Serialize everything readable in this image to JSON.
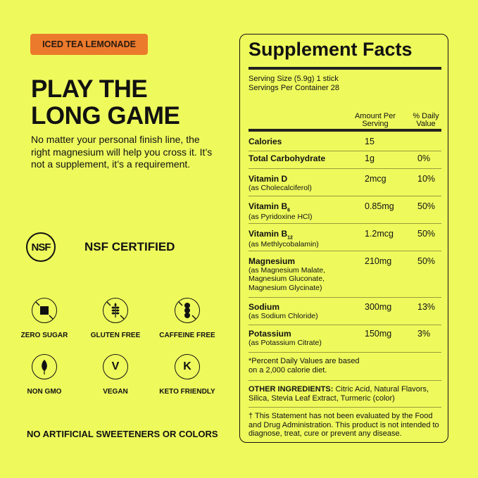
{
  "flavor_badge": "ICED TEA LEMONADE",
  "headline": [
    "PLAY THE",
    "LONG GAME"
  ],
  "description": "No matter your personal finish line, the right magnesium will help you cross it. It’s not a supplement, it’s a requirement.",
  "certification": {
    "logo_text": "NSF",
    "label": "NSF CERTIFIED"
  },
  "features": [
    {
      "label": "ZERO SUGAR",
      "icon": "no-sugar-icon"
    },
    {
      "label": "GLUTEN FREE",
      "icon": "no-wheat-icon"
    },
    {
      "label": "CAFFEINE FREE",
      "icon": "no-coffee-bean-icon"
    },
    {
      "label": "NON GMO",
      "icon": "leaf-icon",
      "glyph": ""
    },
    {
      "label": "VEGAN",
      "icon": "vegan-v-icon",
      "glyph": "V"
    },
    {
      "label": "KETO FRIENDLY",
      "icon": "keto-k-icon",
      "glyph": "K"
    }
  ],
  "footer_claim": "NO ARTIFICIAL SWEETENERS OR COLORS",
  "facts": {
    "title": "Supplement Facts",
    "serving_size": "Serving Size (5.9g) 1 stick",
    "servings_per_container": "Servings Per Container 28",
    "col_amount": [
      "Amount Per",
      "Serving"
    ],
    "col_dv": [
      "% Daily",
      "Value"
    ],
    "rows": [
      {
        "name": "Calories",
        "sub": "",
        "amount": "15",
        "dv": ""
      },
      {
        "name": "Total Carbohydrate",
        "sub": "",
        "amount": "1g",
        "dv": "0%"
      },
      {
        "name": "Vitamin D",
        "sub": "(as Cholecalciferol)",
        "amount": "2mcg",
        "dv": "10%"
      },
      {
        "name": "Vitamin B",
        "subscript": "6",
        "sub": "(as Pyridoxine HCl)",
        "amount": "0.85mg",
        "dv": "50%"
      },
      {
        "name": "Vitamin B",
        "subscript": "12",
        "sub": "(as Methlycobalamin)",
        "amount": "1.2mcg",
        "dv": "50%"
      },
      {
        "name": "Magnesium",
        "sub": "(as Magnesium Malate, Magnesium Gluconate, Magnesium Glycinate)",
        "amount": "210mg",
        "dv": "50%"
      },
      {
        "name": "Sodium",
        "sub": "(as Sodium Chloride)",
        "amount": "300mg",
        "dv": "13%"
      },
      {
        "name": "Potassium",
        "sub": "(as Potassium Citrate)",
        "amount": "150mg",
        "dv": "3%"
      }
    ],
    "dv_note": "*Percent Daily Values are based on a 2,000 calorie diet.",
    "other_label": "OTHER INGREDIENTS:",
    "other_text": " Citric Acid, Natural Flavors, Silica, Stevia Leaf Extract, Turmeric (color)",
    "disclaimer": "† This Statement has not been evaluated by the Food and Drug Administration. This product is not intended to diagnose, treat, cure or prevent any disease."
  },
  "colors": {
    "background": "#eefa5c",
    "badge": "#ec7a2c",
    "text": "#111111"
  }
}
